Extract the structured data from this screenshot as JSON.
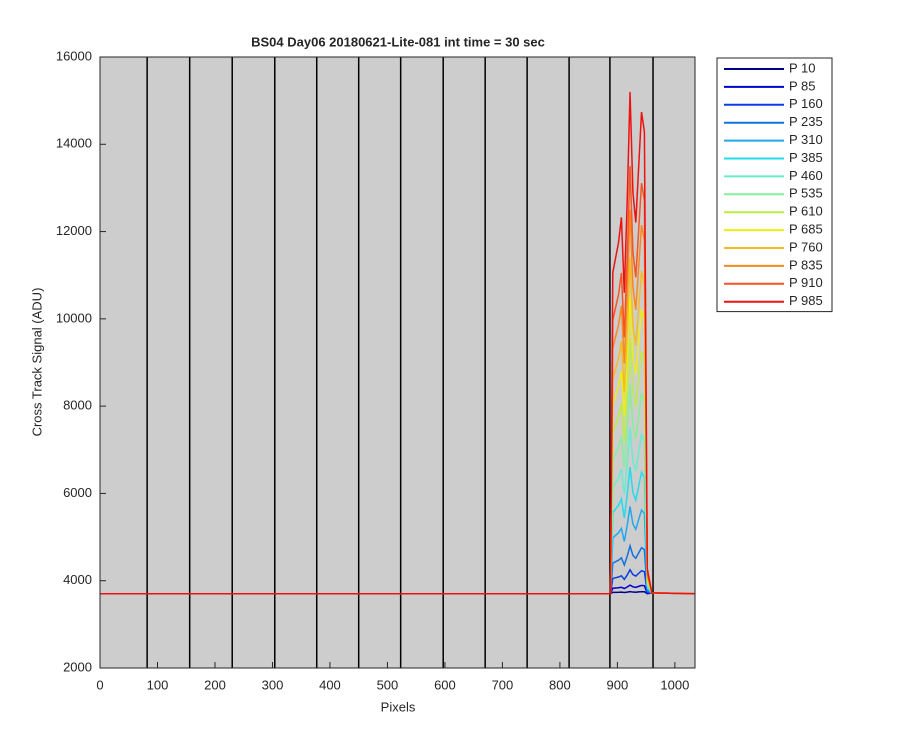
{
  "chart_data": {
    "type": "line",
    "title": "BS04 Day06 20180621-Lite-081 int time = 30 sec",
    "xlabel": "Pixels",
    "ylabel": "Cross Track Signal (ADU)",
    "xlim": [
      0,
      1035
    ],
    "ylim": [
      2000,
      16000
    ],
    "xticks": [
      0,
      100,
      200,
      300,
      400,
      500,
      600,
      700,
      800,
      900,
      1000
    ],
    "yticks": [
      2000,
      4000,
      6000,
      8000,
      10000,
      12000,
      14000,
      16000
    ],
    "vlines": [
      82,
      156,
      230,
      304,
      377,
      450,
      523,
      597,
      670,
      743,
      816,
      887,
      962
    ],
    "vline_color": "#000000",
    "background": "#cdcdcd",
    "legend": "outside-right",
    "x": [
      0,
      880,
      888,
      892,
      897,
      902,
      907,
      912,
      917,
      922,
      927,
      932,
      937,
      942,
      947,
      952,
      960,
      1035
    ],
    "series": [
      {
        "name": "P 10",
        "color": "#00008b",
        "values": [
          3700,
          3700,
          3700,
          3732,
          3734,
          3735,
          3738,
          3730,
          3739,
          3750,
          3740,
          3737,
          3743,
          3748,
          3746,
          3703,
          3720,
          3700
        ]
      },
      {
        "name": "P 85",
        "color": "#0000cd",
        "values": [
          3700,
          3700,
          3700,
          3828,
          3834,
          3840,
          3850,
          3820,
          3856,
          3900,
          3860,
          3848,
          3870,
          3892,
          3884,
          3710,
          3720,
          3700
        ]
      },
      {
        "name": "P 160",
        "color": "#0a3ee0",
        "values": [
          3700,
          3700,
          3700,
          4052,
          4069,
          4085,
          4113,
          4030,
          4129,
          4250,
          4140,
          4107,
          4168,
          4228,
          4206,
          3728,
          3720,
          3700
        ]
      },
      {
        "name": "P 235",
        "color": "#1172e0",
        "values": [
          3700,
          3700,
          3700,
          4404,
          4437,
          4470,
          4525,
          4360,
          4558,
          4800,
          4580,
          4514,
          4635,
          4756,
          4712,
          3755,
          3720,
          3700
        ]
      },
      {
        "name": "P 310",
        "color": "#22a8ee",
        "values": [
          3700,
          3700,
          3700,
          4980,
          5040,
          5100,
          5200,
          4900,
          5260,
          5700,
          5300,
          5180,
          5400,
          5620,
          5540,
          3800,
          3720,
          3700
        ]
      },
      {
        "name": "P 385",
        "color": "#22dcee",
        "values": [
          3700,
          3700,
          3700,
          5556,
          5643,
          5730,
          5875,
          5440,
          5962,
          6600,
          6020,
          5846,
          6165,
          6484,
          6368,
          3845,
          3720,
          3700
        ]
      },
      {
        "name": "P 460",
        "color": "#66eecc",
        "values": [
          3700,
          3700,
          3700,
          6132,
          6246,
          6360,
          6550,
          5980,
          6664,
          7500,
          6740,
          6512,
          6930,
          7348,
          7196,
          3890,
          3720,
          3700
        ]
      },
      {
        "name": "P 535",
        "color": "#88ee99",
        "values": [
          3700,
          3700,
          3700,
          6772,
          6916,
          7060,
          7300,
          6580,
          7444,
          8500,
          7540,
          7252,
          7780,
          8308,
          8116,
          3940,
          3720,
          3700
        ]
      },
      {
        "name": "P 610",
        "color": "#bbee44",
        "values": [
          3700,
          3700,
          3700,
          7412,
          7586,
          7760,
          8050,
          7180,
          8224,
          9500,
          8340,
          7992,
          8630,
          9268,
          9036,
          3990,
          3720,
          3700
        ]
      },
      {
        "name": "P 685",
        "color": "#eeee11",
        "values": [
          3700,
          3700,
          3700,
          8052,
          8256,
          8460,
          8800,
          7780,
          9004,
          10500,
          9140,
          8732,
          9480,
          10228,
          9956,
          4040,
          3720,
          3700
        ]
      },
      {
        "name": "P 760",
        "color": "#f4bb22",
        "values": [
          3700,
          3700,
          3700,
          8628,
          8859,
          9090,
          9475,
          8320,
          9706,
          11400,
          9860,
          9398,
          10245,
          11092,
          10784,
          4085,
          3720,
          3700
        ]
      },
      {
        "name": "P 835",
        "color": "#f88822",
        "values": [
          3700,
          3700,
          3700,
          9332,
          9596,
          9860,
          10300,
          8980,
          10564,
          12500,
          10740,
          10212,
          11180,
          12148,
          11796,
          4140,
          3720,
          3700
        ]
      },
      {
        "name": "P 910",
        "color": "#f45522",
        "values": [
          3700,
          3700,
          3700,
          9972,
          10266,
          10560,
          11050,
          9580,
          11344,
          13500,
          11540,
          10952,
          12030,
          13108,
          12716,
          4190,
          3720,
          3700
        ]
      },
      {
        "name": "P 985",
        "color": "#ee1111",
        "values": [
          3700,
          3700,
          3700,
          11060,
          11405,
          11750,
          12325,
          10600,
          12670,
          15200,
          12900,
          12210,
          13475,
          14740,
          14280,
          4275,
          3720,
          3700
        ]
      }
    ]
  }
}
